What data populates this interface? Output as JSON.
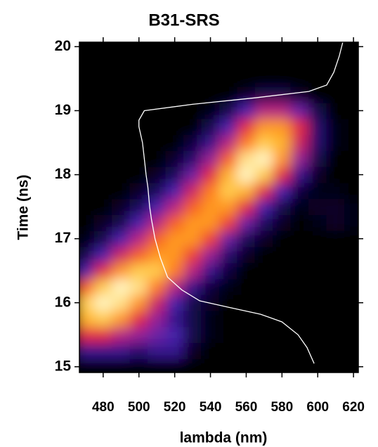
{
  "chart_data": {
    "type": "heatmap",
    "title": "B31-SRS",
    "xlabel": "lambda (nm)",
    "ylabel": "Time (ns)",
    "x": [
      470,
      480,
      490,
      500,
      510,
      520,
      530,
      540,
      550,
      560,
      570,
      580,
      590,
      600,
      610,
      620
    ],
    "y": [
      15,
      15.25,
      15.5,
      15.75,
      16,
      16.25,
      16.5,
      16.75,
      17,
      17.25,
      17.5,
      17.75,
      18,
      18.25,
      18.5,
      18.75,
      19,
      19.25,
      19.5,
      19.75,
      20
    ],
    "z": [
      [
        0,
        0,
        0,
        0,
        0,
        0,
        0,
        0,
        0,
        0,
        0,
        0,
        0,
        0,
        0,
        0
      ],
      [
        2,
        2,
        2,
        1.5,
        2,
        2,
        0.5,
        0,
        0,
        0,
        0,
        0,
        0,
        0,
        0,
        0
      ],
      [
        5,
        5,
        4,
        3.5,
        3,
        2.5,
        1,
        0.3,
        0,
        0,
        0,
        0,
        0,
        0,
        0,
        0
      ],
      [
        7.5,
        8,
        7,
        5,
        3.5,
        2,
        1,
        0.3,
        0,
        0,
        0,
        0,
        0,
        0,
        0,
        0
      ],
      [
        8,
        9,
        8.5,
        7,
        4.5,
        2.5,
        1,
        0.5,
        0,
        0,
        0,
        0,
        0,
        0,
        0,
        0
      ],
      [
        6,
        8,
        9,
        8.5,
        6.5,
        4,
        2,
        0.8,
        0.3,
        0,
        0,
        0,
        0,
        0,
        0,
        0
      ],
      [
        2.5,
        5,
        7,
        8,
        8,
        6.5,
        4,
        2,
        0.8,
        0,
        0,
        0,
        0,
        0,
        0,
        0
      ],
      [
        1,
        2.5,
        4.5,
        6,
        7,
        7,
        5.5,
        3.5,
        1.5,
        0.5,
        0,
        0,
        0,
        0,
        0,
        0
      ],
      [
        0.3,
        1,
        2.5,
        4,
        6,
        7,
        7,
        5.5,
        3,
        1.2,
        0.5,
        0,
        0,
        0,
        0,
        0
      ],
      [
        0,
        0.5,
        1,
        2.5,
        4,
        6,
        7,
        7,
        5.5,
        3,
        1.3,
        0.5,
        0,
        0.3,
        0.5,
        0.3
      ],
      [
        0,
        0,
        0.5,
        1.2,
        2.5,
        4,
        6,
        7,
        7,
        5,
        2.5,
        1,
        0.3,
        0.5,
        0.5,
        0.3
      ],
      [
        0,
        0,
        0,
        0.5,
        1.2,
        2.5,
        4.5,
        6.5,
        8,
        7.5,
        5,
        2.5,
        0.8,
        0.3,
        0.3,
        0
      ],
      [
        0,
        0,
        0,
        0,
        0.5,
        1.2,
        3,
        5,
        7.5,
        9,
        8,
        5,
        2,
        0.5,
        0,
        0
      ],
      [
        0,
        0,
        0,
        0,
        0,
        0.6,
        1.5,
        3.5,
        6,
        8.5,
        9,
        7,
        3.5,
        1,
        0,
        0
      ],
      [
        0,
        0,
        0,
        0,
        0,
        0,
        0.8,
        2,
        4,
        6.5,
        8,
        7.5,
        4.5,
        1.5,
        0.3,
        0
      ],
      [
        0,
        0,
        0,
        0,
        0,
        0,
        0,
        1,
        2.5,
        5,
        7,
        7,
        5,
        1.5,
        0.3,
        0
      ],
      [
        0,
        0,
        0,
        0,
        0,
        0,
        0,
        0.3,
        1,
        2.5,
        4,
        4,
        3,
        1,
        0,
        0
      ],
      [
        0,
        0,
        0,
        0,
        0,
        0,
        0,
        0,
        0,
        0.5,
        1,
        1,
        0.5,
        0,
        0,
        0
      ],
      [
        0,
        0,
        0,
        0,
        0,
        0,
        0,
        0,
        0,
        0,
        0,
        0,
        0,
        0,
        0,
        0
      ],
      [
        0,
        0,
        0,
        0,
        0,
        0,
        0,
        0,
        0,
        0,
        0,
        0,
        0,
        0,
        0,
        0
      ],
      [
        0,
        0,
        0,
        0,
        0,
        0,
        0,
        0,
        0,
        0,
        0,
        0,
        0,
        0,
        0,
        0
      ]
    ],
    "zlim": [
      0,
      9
    ],
    "colormap": [
      "#000000",
      "#1a0a60",
      "#4a22b0",
      "#b0208c",
      "#e8283c",
      "#ff7818",
      "#ffc030",
      "#fff4c0"
    ],
    "line": {
      "color": "#ffffff",
      "x": [
        598,
        594,
        589,
        580,
        568,
        550,
        534,
        524,
        516,
        512,
        509,
        507,
        506,
        505,
        504,
        503,
        502,
        500,
        500,
        503,
        530,
        565,
        595,
        605,
        609,
        612,
        614
      ],
      "y": [
        15.05,
        15.3,
        15.5,
        15.7,
        15.82,
        15.93,
        16.03,
        16.2,
        16.4,
        16.7,
        17,
        17.3,
        17.5,
        17.8,
        18,
        18.25,
        18.5,
        18.75,
        18.85,
        19,
        19.1,
        19.2,
        19.3,
        19.4,
        19.6,
        19.85,
        20.07
      ]
    },
    "xlim": [
      466.7,
      622.7
    ],
    "ylim": [
      14.91,
      20.07
    ],
    "xticks": [
      480,
      500,
      520,
      540,
      560,
      580,
      600,
      620
    ],
    "yticks": [
      15,
      16,
      17,
      18,
      19,
      20
    ]
  }
}
